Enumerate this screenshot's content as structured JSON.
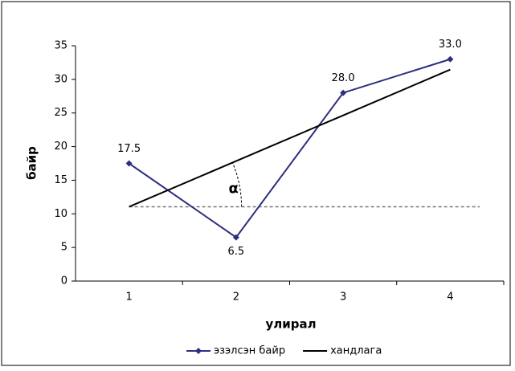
{
  "chart_data": {
    "type": "line",
    "categories": [
      "1",
      "2",
      "3",
      "4"
    ],
    "series": [
      {
        "name": "эзэлсэн байр",
        "color": "#2e2e7e",
        "values": [
          17.5,
          6.5,
          28,
          33
        ],
        "value_labels": [
          "17.5",
          "6.5",
          "28.0",
          "33.0"
        ]
      },
      {
        "name": "хандлага",
        "color": "#000000",
        "values": [
          11.05,
          17.85,
          24.65,
          31.45
        ]
      }
    ],
    "ylim": [
      0,
      35
    ],
    "yticks": [
      0,
      5,
      10,
      15,
      20,
      25,
      30,
      35
    ],
    "xlabel": "улирал",
    "ylabel": "байр",
    "annotation": "α",
    "legend": "bottom"
  }
}
